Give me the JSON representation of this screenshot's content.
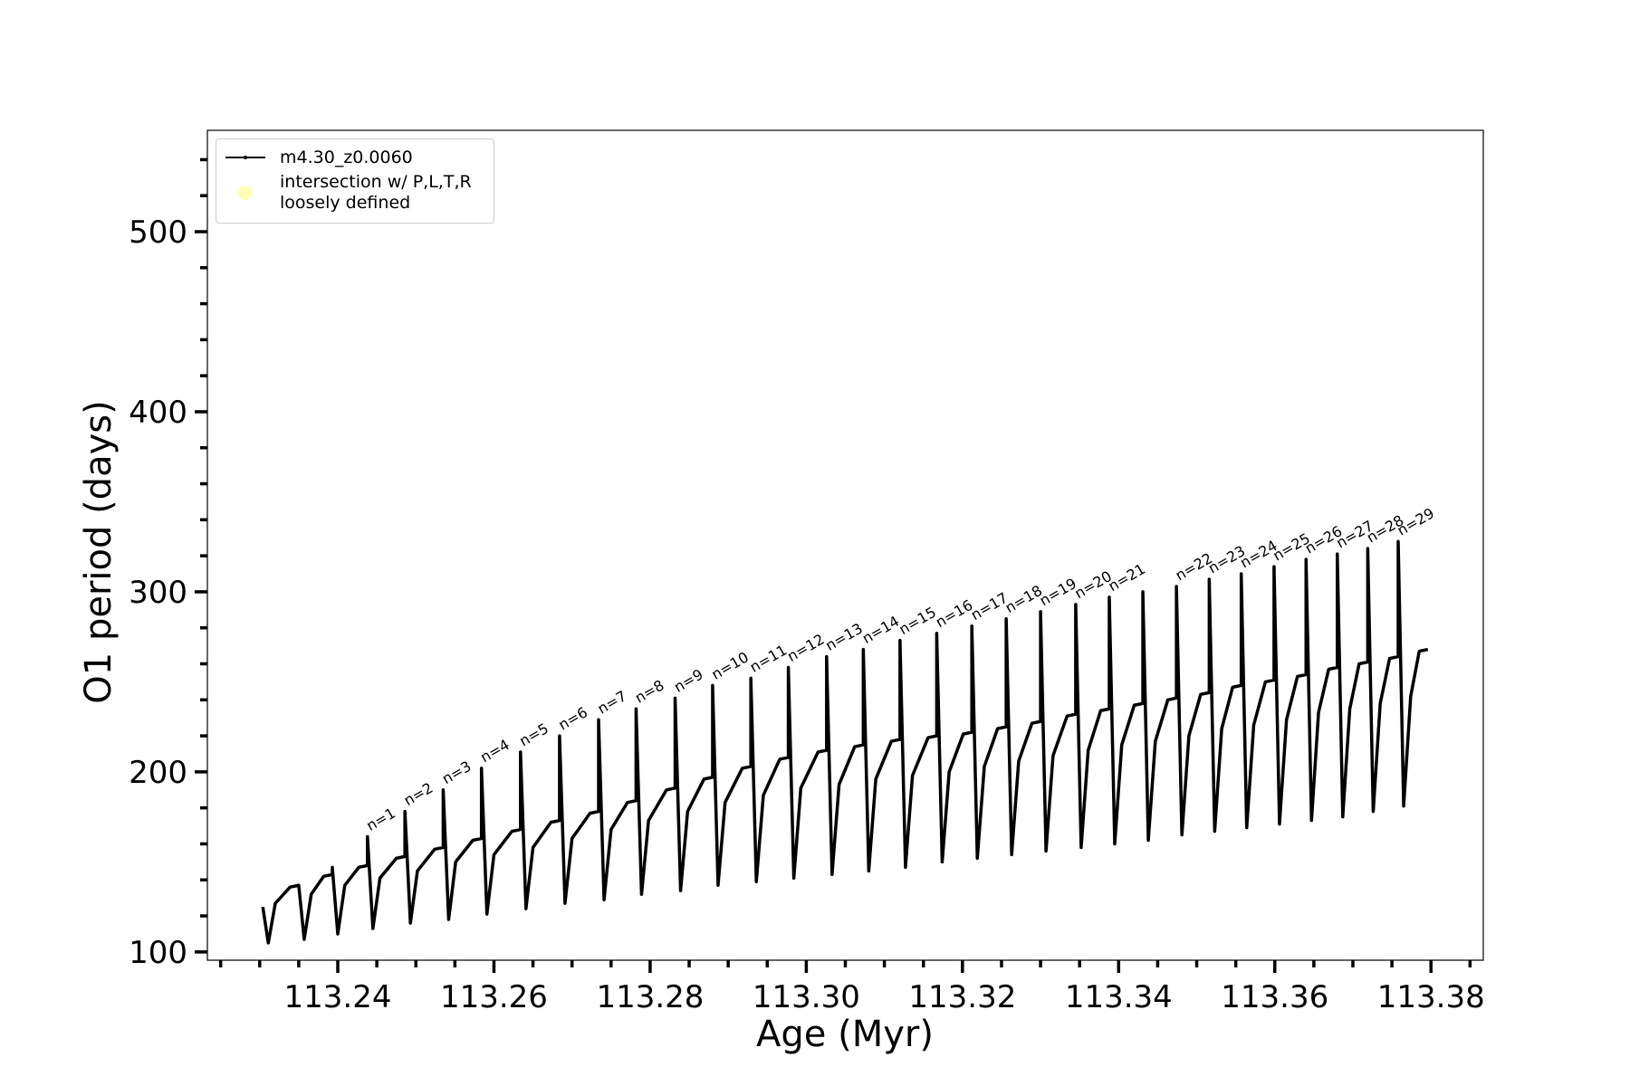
{
  "chart_data": {
    "type": "line",
    "x_label": "Age (Myr)",
    "y_label": "O1 period (days)",
    "xlim": [
      113.2233,
      113.3867
    ],
    "ylim": [
      95.4,
      556.3
    ],
    "xticks": [
      113.24,
      113.26,
      113.28,
      {
        "value": 113.3,
        "label": "113.30"
      },
      113.32,
      113.34,
      113.36,
      113.38
    ],
    "xticks_minor": [
      113.225,
      113.23,
      113.235,
      113.245,
      113.25,
      113.255,
      113.265,
      113.27,
      113.275,
      113.285,
      113.29,
      113.295,
      113.305,
      113.31,
      113.315,
      113.325,
      113.33,
      113.335,
      113.345,
      113.35,
      113.355,
      113.365,
      113.37,
      113.375,
      113.385
    ],
    "yticks": [
      100,
      200,
      300,
      400,
      500
    ],
    "yticks_minor": [
      120,
      140,
      160,
      180,
      220,
      240,
      260,
      280,
      320,
      340,
      360,
      380,
      420,
      440,
      460,
      480,
      520,
      540
    ],
    "legend": "upper left",
    "series": [
      {
        "name": "m4.30_z0.0060",
        "color": "#000000",
        "x": [
          113.2304,
          113.2311,
          113.232,
          113.2339,
          113.235,
          113.235,
          113.2357,
          113.2366,
          113.2382,
          113.2393,
          113.2393,
          113.24,
          113.2409,
          113.2427,
          113.2438,
          113.2438,
          113.2445,
          113.2454,
          113.2475,
          113.2486,
          113.2486,
          113.2493,
          113.2502,
          113.2524,
          113.2535,
          113.2535,
          113.2542,
          113.2551,
          113.2573,
          113.2584,
          113.2584,
          113.2591,
          113.26,
          113.2623,
          113.2634,
          113.2634,
          113.2641,
          113.265,
          113.2673,
          113.2684,
          113.2684,
          113.2691,
          113.27,
          113.2723,
          113.2734,
          113.2734,
          113.2741,
          113.275,
          113.2771,
          113.2782,
          113.2782,
          113.2789,
          113.2798,
          113.2821,
          113.2832,
          113.2832,
          113.2839,
          113.2848,
          113.2869,
          113.288,
          113.288,
          113.2887,
          113.2896,
          113.2918,
          113.2929,
          113.2929,
          113.2936,
          113.2945,
          113.2966,
          113.2977,
          113.2977,
          113.2984,
          113.2993,
          113.3015,
          113.3026,
          113.3026,
          113.3033,
          113.3042,
          113.3062,
          113.3073,
          113.3073,
          113.308,
          113.3089,
          113.3109,
          113.312,
          113.312,
          113.3127,
          113.3136,
          113.3156,
          113.3167,
          113.3167,
          113.3174,
          113.3183,
          113.3201,
          113.3212,
          113.3212,
          113.3219,
          113.3228,
          113.3245,
          113.3256,
          113.3256,
          113.3263,
          113.3272,
          113.3289,
          113.33,
          113.33,
          113.3307,
          113.3316,
          113.3334,
          113.3345,
          113.3345,
          113.3352,
          113.3361,
          113.3377,
          113.3388,
          113.3388,
          113.3395,
          113.3404,
          113.342,
          113.3431,
          113.3431,
          113.3438,
          113.3447,
          113.3463,
          113.3474,
          113.3474,
          113.3481,
          113.349,
          113.3505,
          113.3516,
          113.3516,
          113.3523,
          113.3532,
          113.3546,
          113.3557,
          113.3557,
          113.3564,
          113.3573,
          113.3588,
          113.3599,
          113.3599,
          113.3606,
          113.3615,
          113.3629,
          113.364,
          113.364,
          113.3647,
          113.3656,
          113.3669,
          113.368,
          113.368,
          113.3687,
          113.3696,
          113.3708,
          113.3719,
          113.3719,
          113.3726,
          113.3735,
          113.3747,
          113.3758,
          113.3758,
          113.3765,
          113.3774,
          113.3785,
          113.3796
        ],
        "values": [
          125,
          105,
          127,
          136,
          137,
          137,
          107,
          132,
          142,
          143,
          147,
          110,
          137,
          147,
          148,
          164,
          113,
          141,
          152,
          153,
          178,
          116,
          145,
          157,
          158,
          190,
          118,
          150,
          162,
          163,
          202,
          121,
          154,
          167,
          168,
          211,
          124,
          158,
          172,
          173,
          220,
          127,
          163,
          177,
          178,
          229,
          129,
          168,
          183,
          184,
          235,
          132,
          173,
          190,
          191,
          241,
          134,
          178,
          196,
          197,
          248,
          137,
          183,
          202,
          203,
          252,
          139,
          187,
          207,
          208,
          258,
          141,
          191,
          211,
          212,
          264,
          143,
          193,
          214,
          215,
          268,
          145,
          196,
          217,
          218,
          273,
          147,
          198,
          219,
          220,
          277,
          150,
          200,
          221,
          222,
          281,
          152,
          203,
          224,
          225,
          285,
          154,
          206,
          227,
          228,
          289,
          156,
          209,
          231,
          232,
          293,
          158,
          212,
          234,
          235,
          297,
          160,
          215,
          237,
          238,
          300,
          162,
          217,
          240,
          241,
          303,
          165,
          220,
          243,
          244,
          307,
          167,
          224,
          247,
          248,
          310,
          169,
          226,
          250,
          251,
          314,
          171,
          229,
          253,
          254,
          318,
          173,
          233,
          257,
          258,
          321,
          175,
          235,
          260,
          261,
          324,
          178,
          238,
          263,
          264,
          328,
          181,
          242,
          267,
          268
        ]
      },
      {
        "name": "intersection w/ P,L,T,R\nloosely defined",
        "color": "#ffffb3",
        "x": [],
        "values": []
      }
    ],
    "annotations": [
      {
        "text": "n=1",
        "x": 113.2438,
        "y": 164
      },
      {
        "text": "n=2",
        "x": 113.2486,
        "y": 178
      },
      {
        "text": "n=3",
        "x": 113.2535,
        "y": 190
      },
      {
        "text": "n=4",
        "x": 113.2584,
        "y": 202
      },
      {
        "text": "n=5",
        "x": 113.2634,
        "y": 211
      },
      {
        "text": "n=6",
        "x": 113.2684,
        "y": 220
      },
      {
        "text": "n=7",
        "x": 113.2734,
        "y": 229
      },
      {
        "text": "n=8",
        "x": 113.2782,
        "y": 235
      },
      {
        "text": "n=9",
        "x": 113.2832,
        "y": 241
      },
      {
        "text": "n=10",
        "x": 113.288,
        "y": 248
      },
      {
        "text": "n=11",
        "x": 113.2929,
        "y": 252
      },
      {
        "text": "n=12",
        "x": 113.2977,
        "y": 258
      },
      {
        "text": "n=13",
        "x": 113.3026,
        "y": 264
      },
      {
        "text": "n=14",
        "x": 113.3073,
        "y": 268
      },
      {
        "text": "n=15",
        "x": 113.312,
        "y": 273
      },
      {
        "text": "n=16",
        "x": 113.3167,
        "y": 277
      },
      {
        "text": "n=17",
        "x": 113.3212,
        "y": 281
      },
      {
        "text": "n=18",
        "x": 113.3256,
        "y": 285
      },
      {
        "text": "n=19",
        "x": 113.33,
        "y": 289
      },
      {
        "text": "n=20",
        "x": 113.3345,
        "y": 293
      },
      {
        "text": "n=21",
        "x": 113.3388,
        "y": 297
      },
      {
        "text": "n=22",
        "x": 113.3474,
        "y": 303
      },
      {
        "text": "n=23",
        "x": 113.3516,
        "y": 307
      },
      {
        "text": "n=24",
        "x": 113.3557,
        "y": 310
      },
      {
        "text": "n=25",
        "x": 113.3599,
        "y": 314
      },
      {
        "text": "n=26",
        "x": 113.364,
        "y": 318
      },
      {
        "text": "n=27",
        "x": 113.368,
        "y": 321
      },
      {
        "text": "n=28",
        "x": 113.3719,
        "y": 324
      },
      {
        "text": "n=29",
        "x": 113.3758,
        "y": 328
      }
    ]
  }
}
